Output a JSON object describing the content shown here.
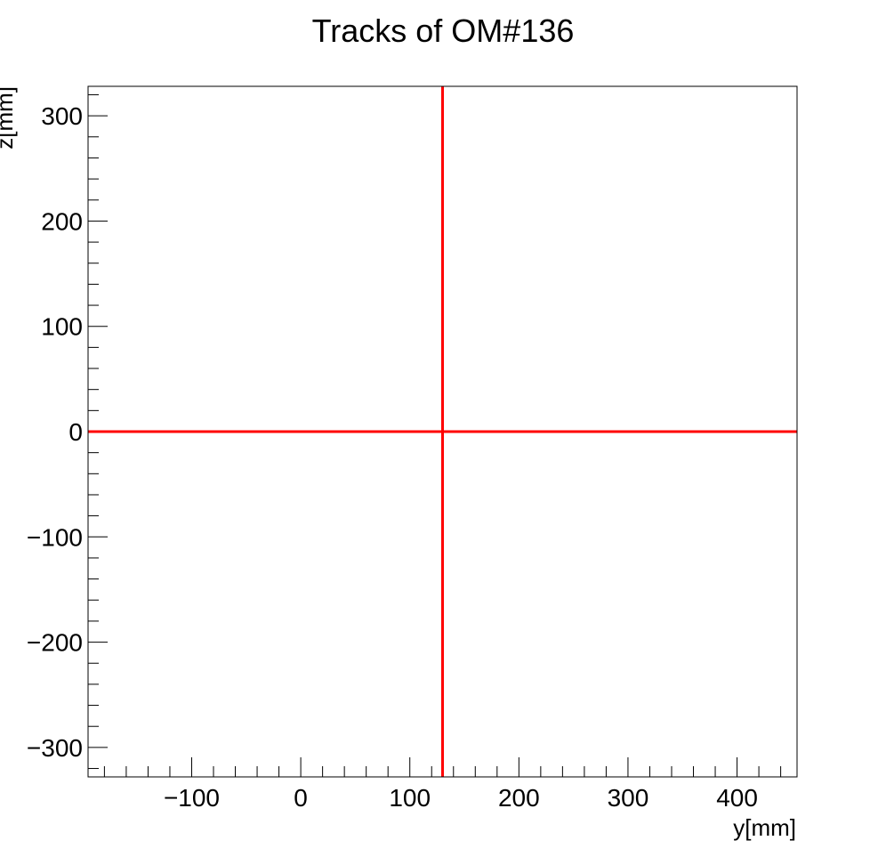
{
  "chart_data": {
    "type": "line",
    "title": "Tracks of OM#136",
    "xlabel": "y[mm]",
    "ylabel": "z[mm]",
    "xlim": [
      -195,
      455
    ],
    "ylim": [
      -328,
      328
    ],
    "x_ticks": [
      -100,
      0,
      100,
      200,
      300,
      400
    ],
    "y_ticks": [
      -300,
      -200,
      -100,
      0,
      100,
      200,
      300
    ],
    "x_tick_labels": [
      "−100",
      "0",
      "100",
      "200",
      "300",
      "400"
    ],
    "y_tick_labels": [
      "−300",
      "−200",
      "−100",
      "0",
      "100",
      "200",
      "300"
    ],
    "grid": false,
    "series": [
      {
        "color": "#ff0000",
        "x": [
          130,
          130
        ],
        "y": [
          -328,
          328
        ]
      },
      {
        "color": "#ff0000",
        "x": [
          -195,
          455
        ],
        "y": [
          0,
          0
        ]
      }
    ]
  }
}
